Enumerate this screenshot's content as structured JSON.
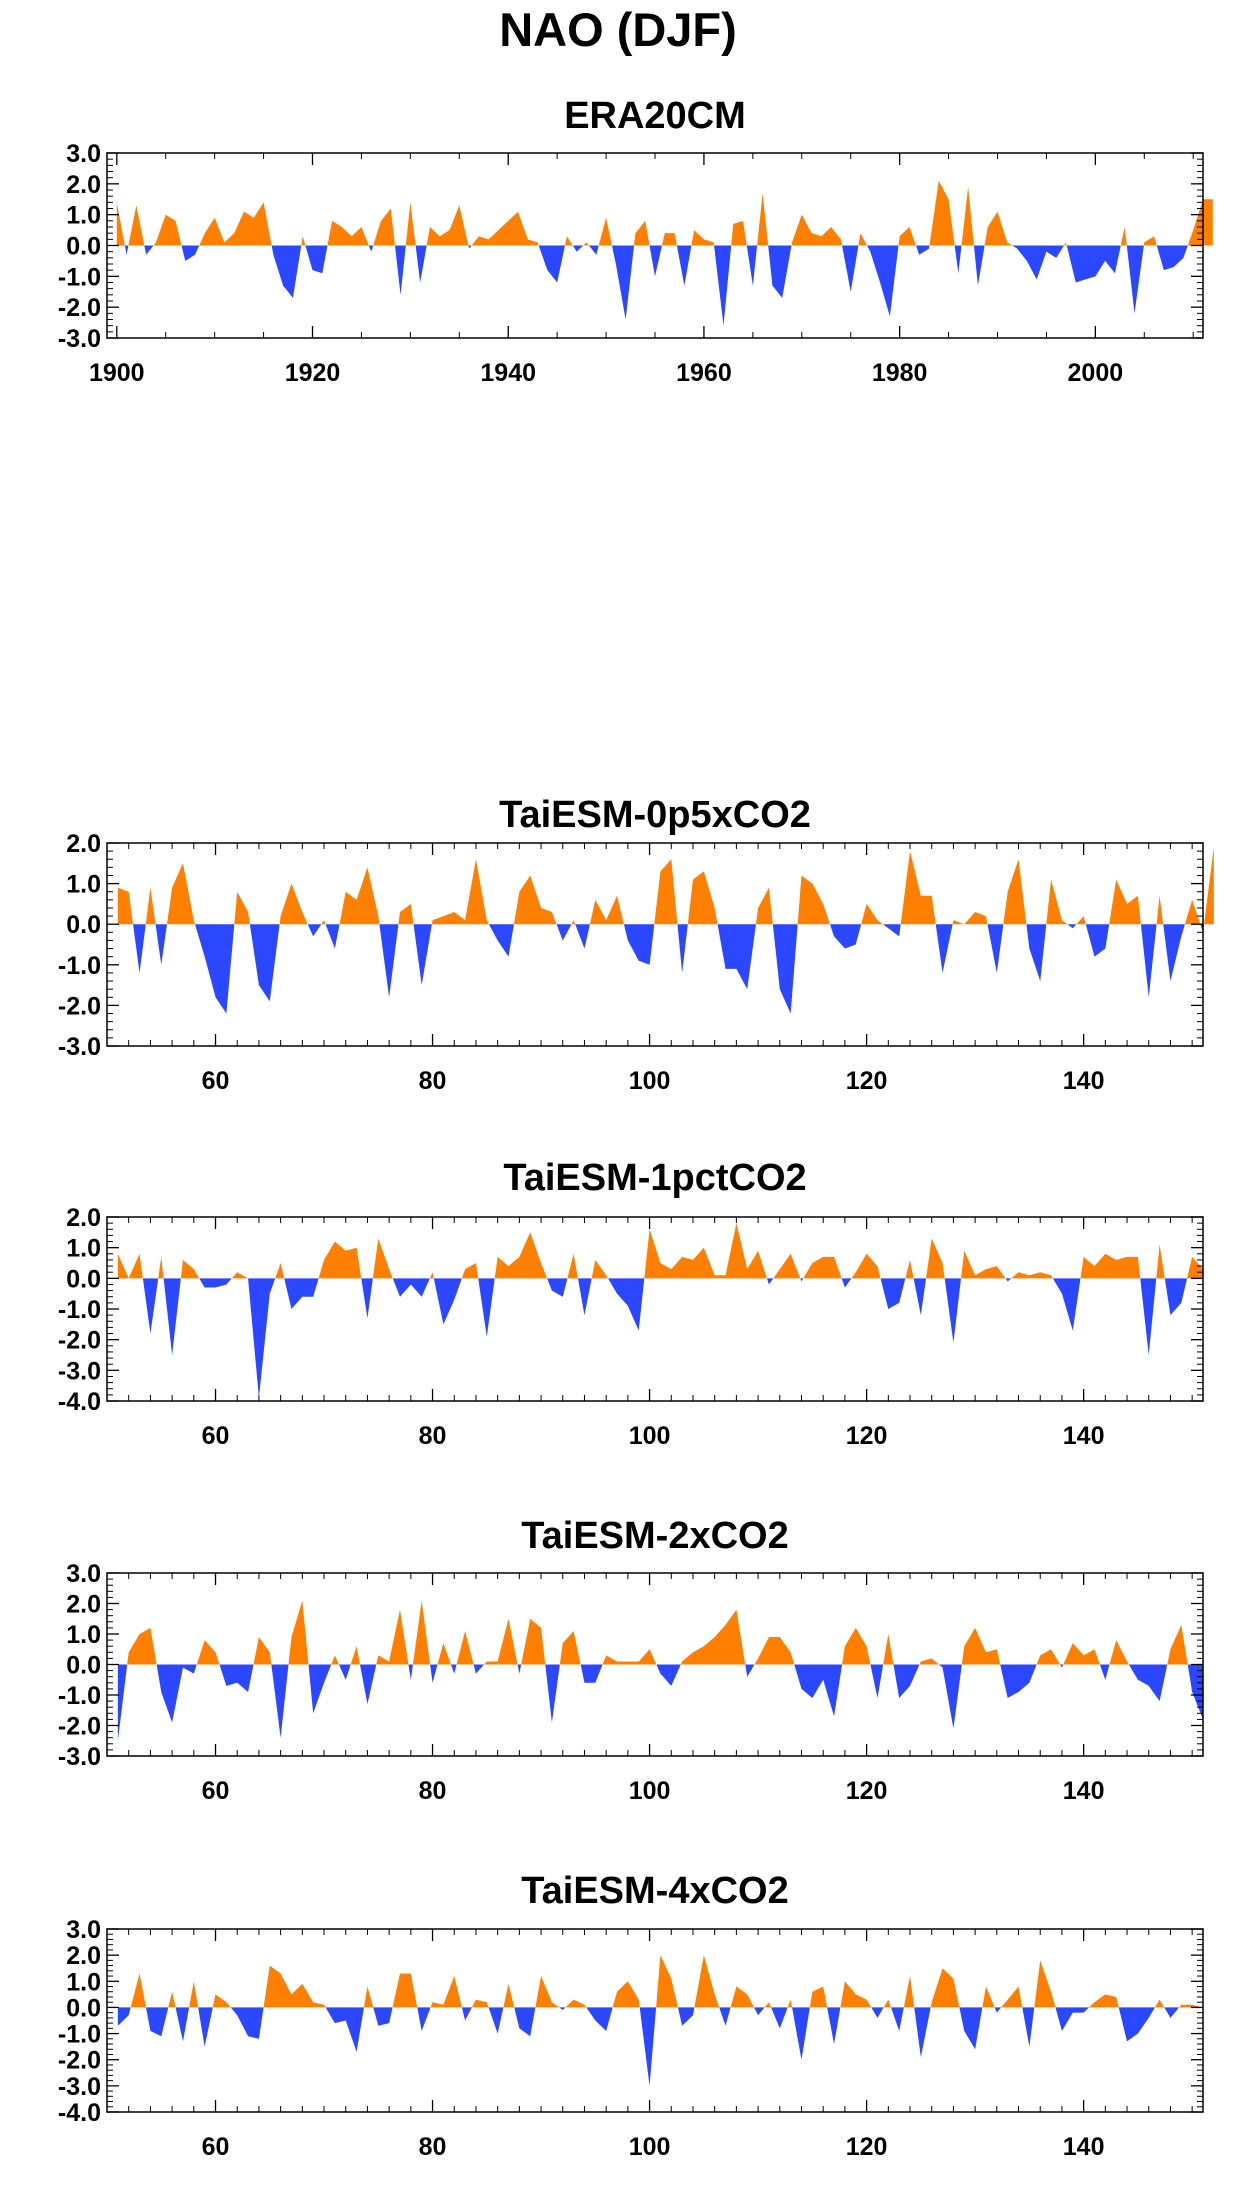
{
  "title": "NAO (DJF)",
  "colors": {
    "positive": "#ff8000",
    "negative": "#2b47ff",
    "axis": "#000000"
  },
  "chart_data": [
    {
      "type": "area",
      "title": "ERA20CM",
      "xlim": [
        1899,
        2011
      ],
      "ylim": [
        -3.0,
        3.0
      ],
      "xticks": [
        1900,
        1920,
        1940,
        1960,
        1980,
        2000
      ],
      "yticks": [
        3.0,
        2.0,
        1.0,
        0.0,
        -1.0,
        -2.0,
        -3.0
      ],
      "x_start": 1900,
      "values": [
        1.4,
        -0.3,
        1.3,
        -0.3,
        0.1,
        1.0,
        0.8,
        -0.5,
        -0.3,
        0.4,
        0.9,
        0.1,
        0.4,
        1.1,
        0.9,
        1.4,
        -0.3,
        -1.3,
        -1.7,
        0.3,
        -0.8,
        -0.9,
        0.8,
        0.6,
        0.3,
        0.6,
        -0.2,
        0.8,
        1.2,
        -1.6,
        1.4,
        -1.2,
        0.6,
        0.3,
        0.5,
        1.3,
        -0.1,
        0.3,
        0.2,
        0.5,
        0.8,
        1.1,
        0.2,
        0.1,
        -0.8,
        -1.2,
        0.3,
        -0.2,
        0.1,
        -0.3,
        0.9,
        -0.6,
        -2.4,
        0.4,
        0.8,
        -1.0,
        0.4,
        0.4,
        -1.3,
        0.5,
        0.2,
        0.1,
        -2.6,
        0.7,
        0.8,
        -1.3,
        1.7,
        -1.3,
        -1.7,
        0.1,
        1.0,
        0.4,
        0.3,
        0.6,
        0.2,
        -1.5,
        0.4,
        -0.2,
        -1.2,
        -2.3,
        0.3,
        0.6,
        -0.3,
        -0.1,
        2.1,
        1.5,
        -0.9,
        1.9,
        -1.3,
        0.6,
        1.1,
        0.1,
        -0.1,
        -0.5,
        -1.1,
        -0.2,
        -0.4,
        0.1,
        -1.2,
        -1.1,
        -1.0,
        -0.5,
        -0.9,
        0.6,
        -2.2,
        0.1,
        0.3,
        -0.8,
        -0.7,
        -0.4,
        0.5,
        1.5,
        1.5
      ]
    },
    {
      "type": "area",
      "title": "TaiESM-0p5xCO2",
      "xlim": [
        50,
        151
      ],
      "ylim": [
        -3.0,
        2.0
      ],
      "xticks": [
        60,
        80,
        100,
        120,
        140
      ],
      "yticks": [
        2.0,
        1.0,
        0.0,
        -1.0,
        -2.0,
        -3.0
      ],
      "x_start": 51,
      "values": [
        0.9,
        0.8,
        -1.2,
        0.9,
        -1.0,
        0.9,
        1.5,
        0.1,
        -0.8,
        -1.8,
        -2.2,
        0.8,
        0.3,
        -1.5,
        -1.9,
        0.2,
        1.0,
        0.3,
        -0.3,
        0.1,
        -0.6,
        0.8,
        0.6,
        1.4,
        0.2,
        -1.8,
        0.3,
        0.5,
        -1.5,
        0.1,
        0.2,
        0.3,
        0.1,
        1.6,
        0.1,
        -0.4,
        -0.8,
        0.8,
        1.2,
        0.4,
        0.3,
        -0.4,
        0.1,
        -0.6,
        0.6,
        0.1,
        0.7,
        -0.4,
        -0.9,
        -1.0,
        1.3,
        1.6,
        -1.2,
        1.1,
        1.3,
        0.4,
        -1.1,
        -1.1,
        -1.6,
        0.4,
        0.9,
        -1.6,
        -2.2,
        1.2,
        1.0,
        0.5,
        -0.3,
        -0.6,
        -0.5,
        0.5,
        0.1,
        -0.1,
        -0.3,
        1.8,
        0.7,
        0.7,
        -1.2,
        0.1,
        0.0,
        0.3,
        0.2,
        -1.2,
        0.8,
        1.6,
        -0.6,
        -1.4,
        1.1,
        0.1,
        -0.1,
        0.2,
        -0.8,
        -0.6,
        1.1,
        0.5,
        0.7,
        -1.8,
        0.7,
        -1.4,
        -0.3,
        0.6,
        -0.2,
        1.9
      ]
    },
    {
      "type": "area",
      "title": "TaiESM-1pctCO2",
      "xlim": [
        50,
        151
      ],
      "ylim": [
        -4.0,
        2.0
      ],
      "xticks": [
        60,
        80,
        100,
        120,
        140
      ],
      "yticks": [
        2.0,
        1.0,
        0.0,
        -1.0,
        -2.0,
        -3.0,
        -4.0
      ],
      "x_start": 51,
      "values": [
        0.8,
        0.0,
        0.8,
        -1.8,
        0.7,
        -2.5,
        0.6,
        0.3,
        -0.3,
        -0.3,
        -0.2,
        0.2,
        0.0,
        -3.9,
        -0.5,
        0.5,
        -1.0,
        -0.6,
        -0.6,
        0.6,
        1.2,
        0.9,
        1.0,
        -1.3,
        1.3,
        0.3,
        -0.6,
        -0.2,
        -0.6,
        0.2,
        -1.5,
        -0.7,
        0.3,
        0.5,
        -1.9,
        0.7,
        0.4,
        0.7,
        1.5,
        0.5,
        -0.4,
        -0.6,
        0.8,
        -1.2,
        0.6,
        0.1,
        -0.5,
        -0.9,
        -1.7,
        1.6,
        0.5,
        0.3,
        0.7,
        0.6,
        1.0,
        0.1,
        0.1,
        1.8,
        0.3,
        0.9,
        -0.2,
        0.3,
        0.8,
        -0.1,
        0.5,
        0.7,
        0.7,
        -0.3,
        0.2,
        0.8,
        0.4,
        -1.0,
        -0.8,
        0.6,
        -1.2,
        1.3,
        0.5,
        -2.1,
        0.9,
        0.1,
        0.3,
        0.4,
        -0.1,
        0.2,
        0.1,
        0.2,
        0.1,
        -0.5,
        -1.7,
        0.7,
        0.4,
        0.8,
        0.6,
        0.7,
        0.7,
        -2.5,
        1.1,
        -1.2,
        -0.8,
        0.7,
        0.3
      ]
    },
    {
      "type": "area",
      "title": "TaiESM-2xCO2",
      "xlim": [
        50,
        151
      ],
      "ylim": [
        -3.0,
        3.0
      ],
      "xticks": [
        60,
        80,
        100,
        120,
        140
      ],
      "yticks": [
        3.0,
        2.0,
        1.0,
        0.0,
        -1.0,
        -2.0,
        -3.0
      ],
      "x_start": 51,
      "values": [
        -2.5,
        0.4,
        1.0,
        1.2,
        -0.9,
        -1.9,
        -0.1,
        -0.3,
        0.8,
        0.4,
        -0.7,
        -0.6,
        -0.9,
        0.9,
        0.4,
        -2.4,
        0.9,
        2.1,
        -1.6,
        -0.6,
        0.3,
        -0.5,
        0.6,
        -1.3,
        0.3,
        0.1,
        1.8,
        -0.5,
        2.1,
        -0.6,
        0.7,
        -0.3,
        1.1,
        -0.3,
        0.1,
        0.1,
        1.5,
        -0.3,
        1.5,
        1.2,
        -1.9,
        0.7,
        1.1,
        -0.6,
        -0.6,
        0.3,
        0.1,
        0.1,
        0.1,
        0.5,
        -0.3,
        -0.7,
        0.1,
        0.4,
        0.6,
        0.9,
        1.3,
        1.8,
        -0.4,
        0.2,
        0.9,
        0.9,
        0.4,
        -0.8,
        -1.1,
        -0.5,
        -1.7,
        0.6,
        1.2,
        0.6,
        -1.1,
        1.0,
        -1.1,
        -0.7,
        0.1,
        0.2,
        -0.1,
        -2.1,
        0.6,
        1.2,
        0.4,
        0.5,
        -1.1,
        -0.9,
        -0.6,
        0.3,
        0.5,
        -0.1,
        0.7,
        0.3,
        0.5,
        -0.5,
        0.8,
        0.1,
        -0.5,
        -0.7,
        -1.2,
        0.5,
        1.3,
        -0.9,
        -1.8
      ]
    },
    {
      "type": "area",
      "title": "TaiESM-4xCO2",
      "xlim": [
        50,
        151
      ],
      "ylim": [
        -4.0,
        3.0
      ],
      "xticks": [
        60,
        80,
        100,
        120,
        140
      ],
      "yticks": [
        3.0,
        2.0,
        1.0,
        0.0,
        -1.0,
        -2.0,
        -3.0,
        -4.0
      ],
      "x_start": 51,
      "values": [
        -0.7,
        -0.3,
        1.3,
        -0.9,
        -1.1,
        0.6,
        -1.3,
        1.0,
        -1.5,
        0.5,
        0.2,
        -0.3,
        -1.1,
        -1.2,
        1.6,
        1.3,
        0.5,
        0.9,
        0.2,
        0.1,
        -0.6,
        -0.5,
        -1.7,
        0.8,
        -0.7,
        -0.6,
        1.3,
        1.3,
        -0.9,
        0.2,
        0.1,
        1.2,
        -0.5,
        0.3,
        0.2,
        -1.0,
        0.9,
        -0.8,
        -1.1,
        1.2,
        0.2,
        -0.1,
        0.3,
        0.1,
        -0.5,
        -0.9,
        0.6,
        1.0,
        0.3,
        -3.0,
        2.0,
        1.1,
        -0.7,
        -0.3,
        2.0,
        0.5,
        -0.7,
        0.8,
        0.5,
        -0.3,
        0.2,
        -0.8,
        0.3,
        -2.0,
        0.6,
        0.8,
        -1.4,
        1.0,
        0.5,
        0.3,
        -0.4,
        0.3,
        -0.9,
        1.2,
        -1.9,
        0.2,
        1.5,
        1.1,
        -0.9,
        -1.6,
        0.8,
        -0.2,
        0.3,
        0.8,
        -1.5,
        1.8,
        0.6,
        -0.9,
        -0.2,
        -0.2,
        0.2,
        0.5,
        0.4,
        -1.3,
        -1.0,
        -0.4,
        0.3,
        -0.4,
        0.1,
        0.1,
        0.0
      ]
    }
  ]
}
